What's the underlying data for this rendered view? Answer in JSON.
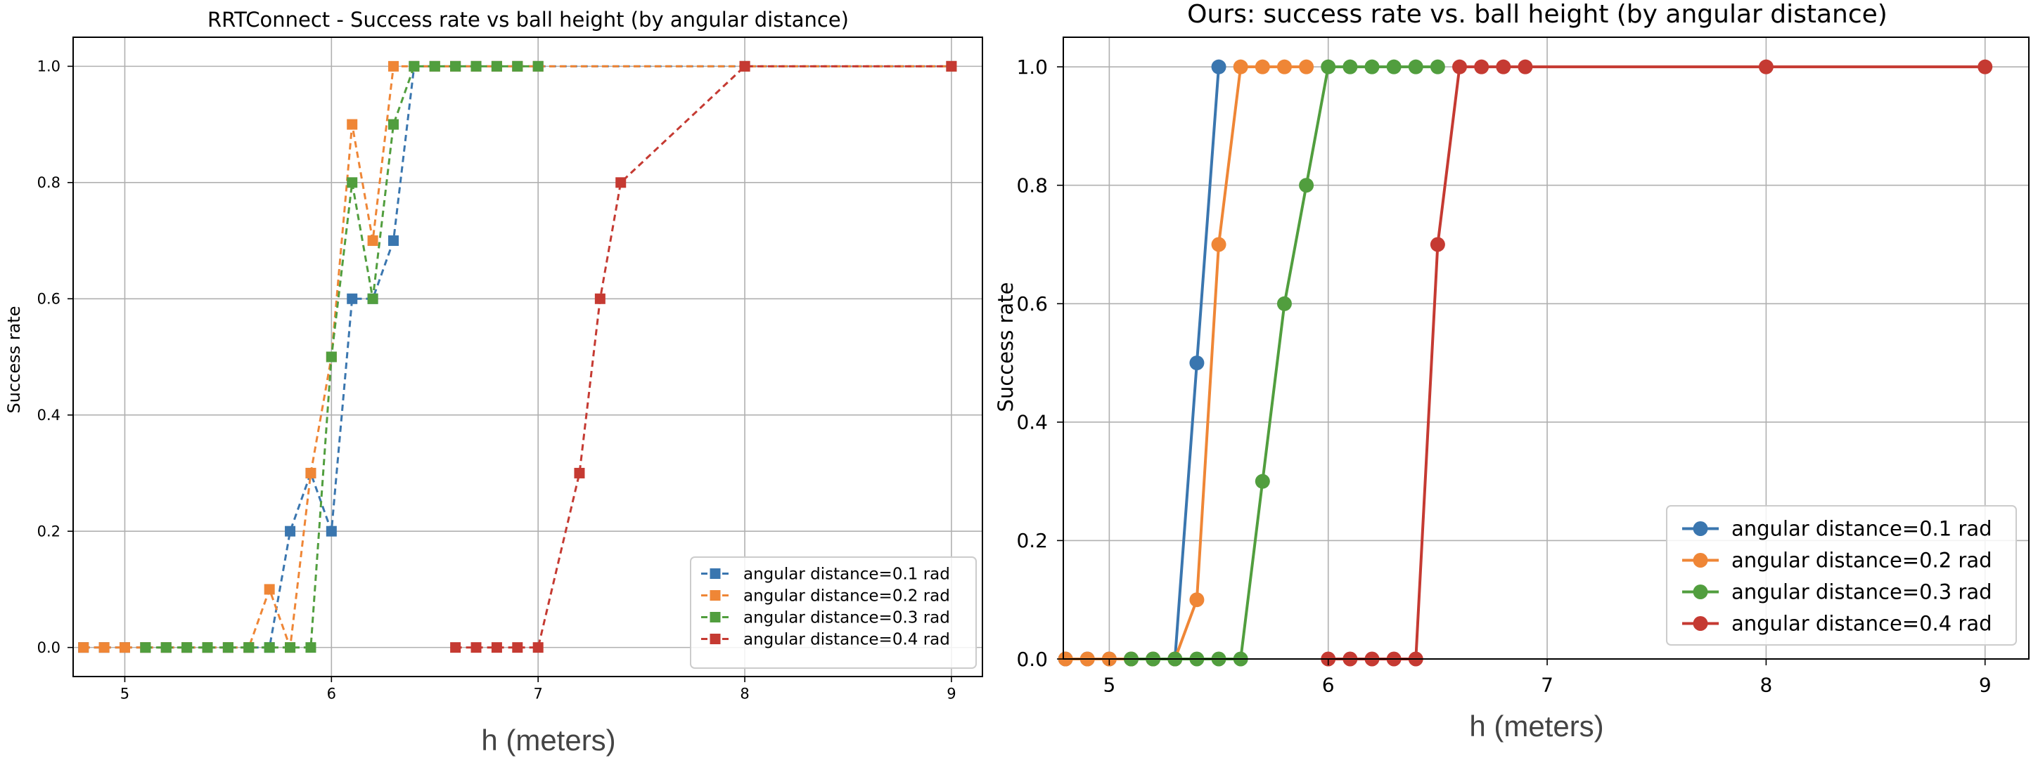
{
  "chart_data": [
    {
      "type": "line",
      "title": "RRTConnect - Success rate vs ball height (by angular distance)",
      "xlabel": "h (meters)",
      "ylabel": "Success rate",
      "xlim": [
        4.75,
        9.15
      ],
      "ylim": [
        -0.05,
        1.05
      ],
      "xticks": [
        5,
        6,
        7,
        8,
        9
      ],
      "yticks": [
        0.0,
        0.2,
        0.4,
        0.6,
        0.8,
        1.0
      ],
      "xtick_labels": [
        "5",
        "6",
        "7",
        "8",
        "9"
      ],
      "ytick_labels": [
        "0.0",
        "0.2",
        "0.4",
        "0.6",
        "0.8",
        "1.0"
      ],
      "grid": true,
      "legend_position": "lower-right",
      "line_style": "dashed",
      "marker": "square",
      "series": [
        {
          "name": "angular distance=0.1 rad",
          "color": "#3a76af",
          "x": [
            4.8,
            4.9,
            5.0,
            5.1,
            5.2,
            5.3,
            5.4,
            5.5,
            5.6,
            5.7,
            5.8,
            5.9,
            6.0,
            6.1,
            6.2,
            6.3,
            6.4,
            6.5,
            6.6,
            6.7,
            6.8,
            6.9,
            7.0,
            8.0,
            9.0
          ],
          "y": [
            0,
            0,
            0,
            0,
            0,
            0,
            0,
            0,
            0,
            0,
            0.2,
            0.3,
            0.2,
            0.6,
            0.6,
            0.7,
            1.0,
            1.0,
            1.0,
            1.0,
            1.0,
            1.0,
            1.0,
            1.0,
            1.0
          ]
        },
        {
          "name": "angular distance=0.2 rad",
          "color": "#ef8636",
          "x": [
            4.8,
            4.9,
            5.0,
            5.1,
            5.2,
            5.3,
            5.4,
            5.5,
            5.6,
            5.7,
            5.8,
            5.9,
            6.0,
            6.1,
            6.2,
            6.3,
            6.4,
            6.5,
            6.6,
            6.7,
            6.8,
            6.9,
            7.0,
            8.0,
            9.0
          ],
          "y": [
            0,
            0,
            0,
            0,
            0,
            0,
            0,
            0,
            0,
            0.1,
            0,
            0.3,
            0.5,
            0.9,
            0.7,
            1.0,
            1.0,
            1.0,
            1.0,
            1.0,
            1.0,
            1.0,
            1.0,
            1.0,
            1.0
          ]
        },
        {
          "name": "angular distance=0.3 rad",
          "color": "#519e3e",
          "x": [
            5.1,
            5.2,
            5.3,
            5.4,
            5.5,
            5.6,
            5.7,
            5.8,
            5.9,
            6.0,
            6.1,
            6.2,
            6.3,
            6.4,
            6.5,
            6.6,
            6.7,
            6.8,
            6.9,
            7.0
          ],
          "y": [
            0,
            0,
            0,
            0,
            0,
            0,
            0,
            0,
            0,
            0.5,
            0.8,
            0.6,
            0.9,
            1.0,
            1.0,
            1.0,
            1.0,
            1.0,
            1.0,
            1.0
          ]
        },
        {
          "name": "angular distance=0.4 rad",
          "color": "#c53a32",
          "x": [
            6.6,
            6.7,
            6.8,
            6.9,
            7.0,
            7.2,
            7.3,
            7.4,
            8.0,
            9.0
          ],
          "y": [
            0,
            0,
            0,
            0,
            0,
            0.3,
            0.6,
            0.8,
            1.0,
            1.0
          ]
        }
      ]
    },
    {
      "type": "line",
      "title": "Ours: success rate vs. ball height (by angular distance)",
      "xlabel": "h (meters)",
      "ylabel": "Success rate",
      "xlim": [
        4.79,
        9.2
      ],
      "ylim": [
        0.0,
        1.05
      ],
      "xticks": [
        5,
        6,
        7,
        8,
        9
      ],
      "yticks": [
        0.0,
        0.2,
        0.4,
        0.6,
        0.8,
        1.0
      ],
      "xtick_labels": [
        "5",
        "6",
        "7",
        "8",
        "9"
      ],
      "ytick_labels": [
        "0.0",
        "0.2",
        "0.4",
        "0.6",
        "0.8",
        "1.0"
      ],
      "grid": true,
      "legend_position": "lower-right",
      "line_style": "solid",
      "marker": "circle",
      "series": [
        {
          "name": "angular distance=0.1 rad",
          "color": "#3a76af",
          "x": [
            4.8,
            4.9,
            5.0,
            5.1,
            5.2,
            5.3,
            5.4,
            5.5
          ],
          "y": [
            0,
            0,
            0,
            0,
            0,
            0,
            0.5,
            1.0
          ]
        },
        {
          "name": "angular distance=0.2 rad",
          "color": "#ef8636",
          "x": [
            4.8,
            4.9,
            5.0,
            5.1,
            5.2,
            5.3,
            5.4,
            5.5,
            5.6,
            5.7,
            5.8,
            5.9
          ],
          "y": [
            0,
            0,
            0,
            0,
            0,
            0,
            0.1,
            0.7,
            1.0,
            1.0,
            1.0,
            1.0
          ]
        },
        {
          "name": "angular distance=0.3 rad",
          "color": "#519e3e",
          "x": [
            5.1,
            5.2,
            5.3,
            5.4,
            5.5,
            5.6,
            5.7,
            5.8,
            5.9,
            6.0,
            6.1,
            6.2,
            6.3,
            6.4,
            6.5
          ],
          "y": [
            0,
            0,
            0,
            0,
            0,
            0,
            0.3,
            0.6,
            0.8,
            1.0,
            1.0,
            1.0,
            1.0,
            1.0,
            1.0
          ]
        },
        {
          "name": "angular distance=0.4 rad",
          "color": "#c53a32",
          "x": [
            6.0,
            6.1,
            6.2,
            6.3,
            6.4,
            6.5,
            6.6,
            6.7,
            6.8,
            6.9,
            8.0,
            9.0
          ],
          "y": [
            0,
            0,
            0,
            0,
            0,
            0.7,
            1.0,
            1.0,
            1.0,
            1.0,
            1.0,
            1.0
          ]
        }
      ]
    }
  ]
}
